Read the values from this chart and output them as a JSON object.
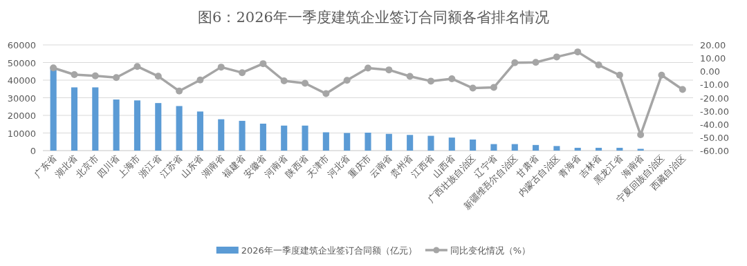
{
  "chart_data": {
    "type": "bar",
    "title": "图6：2026年一季度建筑企业签订合同额各省排名情况",
    "categories": [
      "广东省",
      "湖北省",
      "北京市",
      "四川省",
      "上海市",
      "浙江省",
      "江苏省",
      "山东省",
      "湖南省",
      "福建省",
      "安徽省",
      "河南省",
      "陕西省",
      "天津市",
      "河北省",
      "重庆市",
      "云南省",
      "贵州省",
      "江西省",
      "山西省",
      "广西壮族自治区",
      "辽宁省",
      "新疆维吾尔自治区",
      "甘肃省",
      "内蒙古自治区",
      "青海省",
      "吉林省",
      "黑龙江省",
      "海南省",
      "宁夏回族自治区",
      "西藏自治区"
    ],
    "series": [
      {
        "name": "2026年一季度建筑企业签订合同额（亿元）",
        "color": "#5b9bd5",
        "values": [
          47300,
          35900,
          35900,
          29000,
          28500,
          27000,
          25300,
          22200,
          17800,
          16900,
          15300,
          14200,
          14200,
          10400,
          10000,
          10200,
          9500,
          8900,
          8400,
          7400,
          6300,
          3700,
          3700,
          3200,
          2600,
          1600,
          1600,
          1600,
          1000,
          null,
          null
        ]
      },
      {
        "name": "同比变化情况（%）",
        "type": "line",
        "axis": "y2",
        "color": "#a5a5a5",
        "marker": "circle",
        "values": [
          2.6,
          -2.5,
          -3.4,
          -4.7,
          3.7,
          -3.7,
          -14.9,
          -6.5,
          3.2,
          -1.0,
          5.8,
          -7.2,
          -9.0,
          -16.9,
          -6.8,
          2.5,
          1.1,
          -3.8,
          -7.4,
          -5.6,
          -12.7,
          -12.2,
          6.5,
          6.8,
          10.9,
          14.7,
          4.8,
          -2.9,
          -48,
          -2.9,
          -13.7
        ]
      }
    ],
    "ylim": [
      0,
      60000
    ],
    "yticks": [
      0,
      10000,
      20000,
      30000,
      40000,
      50000,
      60000
    ],
    "y2lim": [
      -60,
      20
    ],
    "y2ticks": [
      {
        "value": 20,
        "label": "20.00"
      },
      {
        "value": 10,
        "label": "10.00"
      },
      {
        "value": 0,
        "label": "0.00"
      },
      {
        "value": -10,
        "label": "-10.00"
      },
      {
        "value": -20,
        "label": "-20.00"
      },
      {
        "value": -30,
        "label": "-30.00"
      },
      {
        "value": -40,
        "label": "-40.00"
      },
      {
        "value": -50,
        "label": "-50.00"
      },
      {
        "value": -60,
        "label": "-60.00"
      }
    ],
    "grid": "y",
    "legend": "bottom"
  }
}
